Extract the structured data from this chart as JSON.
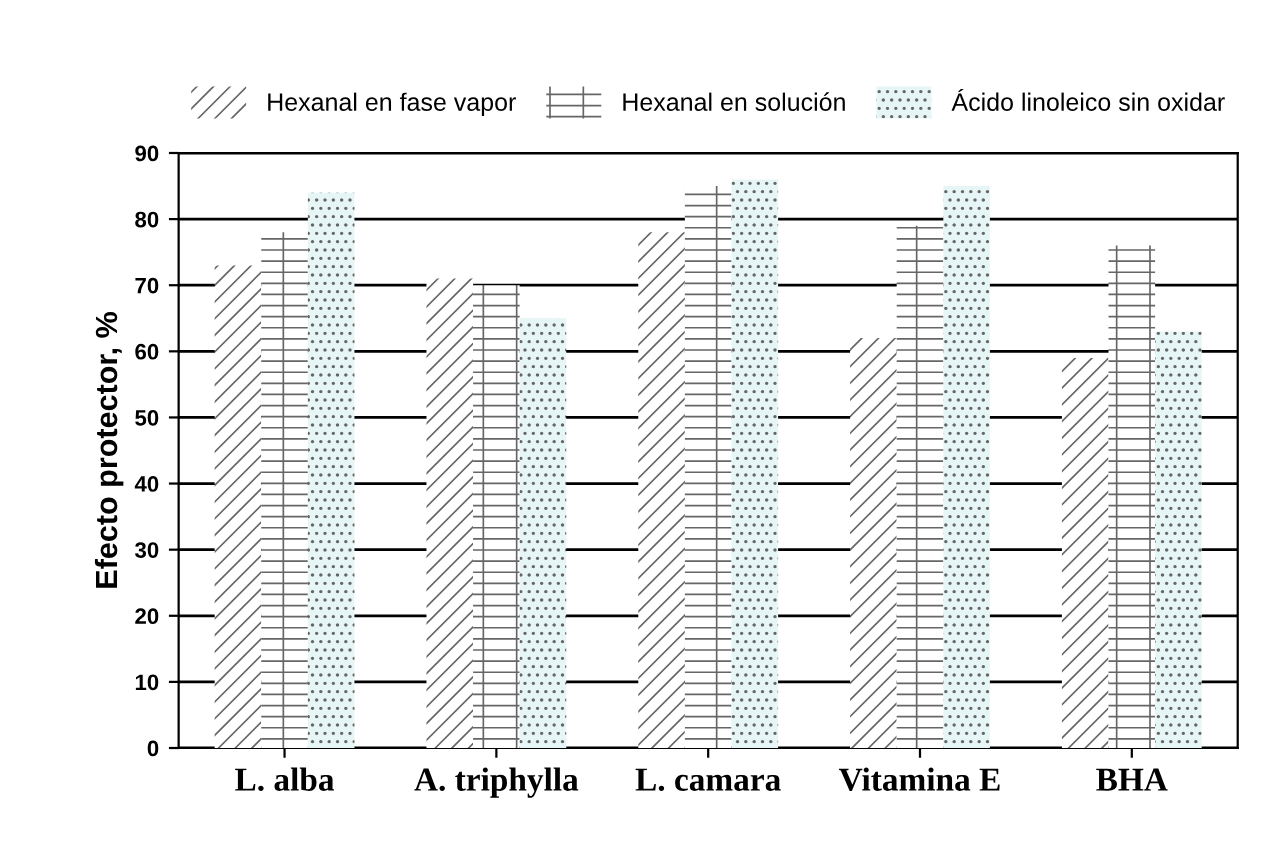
{
  "chart_data": {
    "type": "bar",
    "ylabel": "Efecto protector, %",
    "categories": [
      "L. alba",
      "A. triphylla",
      "L. camara",
      "Vitamina E",
      "BHA"
    ],
    "series": [
      {
        "name": "Hexanal en fase vapor",
        "color": "#ffffff",
        "values": [
          73,
          71,
          78,
          62,
          59
        ]
      },
      {
        "name": "Hexanal en solución",
        "color": "#ffffff",
        "values": [
          78,
          70,
          85,
          79,
          76
        ]
      },
      {
        "name": "Ácido linoleico sin oxidar",
        "color": "#e6f6f6",
        "values": [
          84,
          65,
          86,
          85,
          63
        ]
      }
    ],
    "ylim": [
      0,
      90
    ],
    "yticks": [
      0,
      10,
      20,
      30,
      40,
      50,
      60,
      70,
      80,
      90
    ],
    "grid": "y",
    "legend": "top"
  }
}
